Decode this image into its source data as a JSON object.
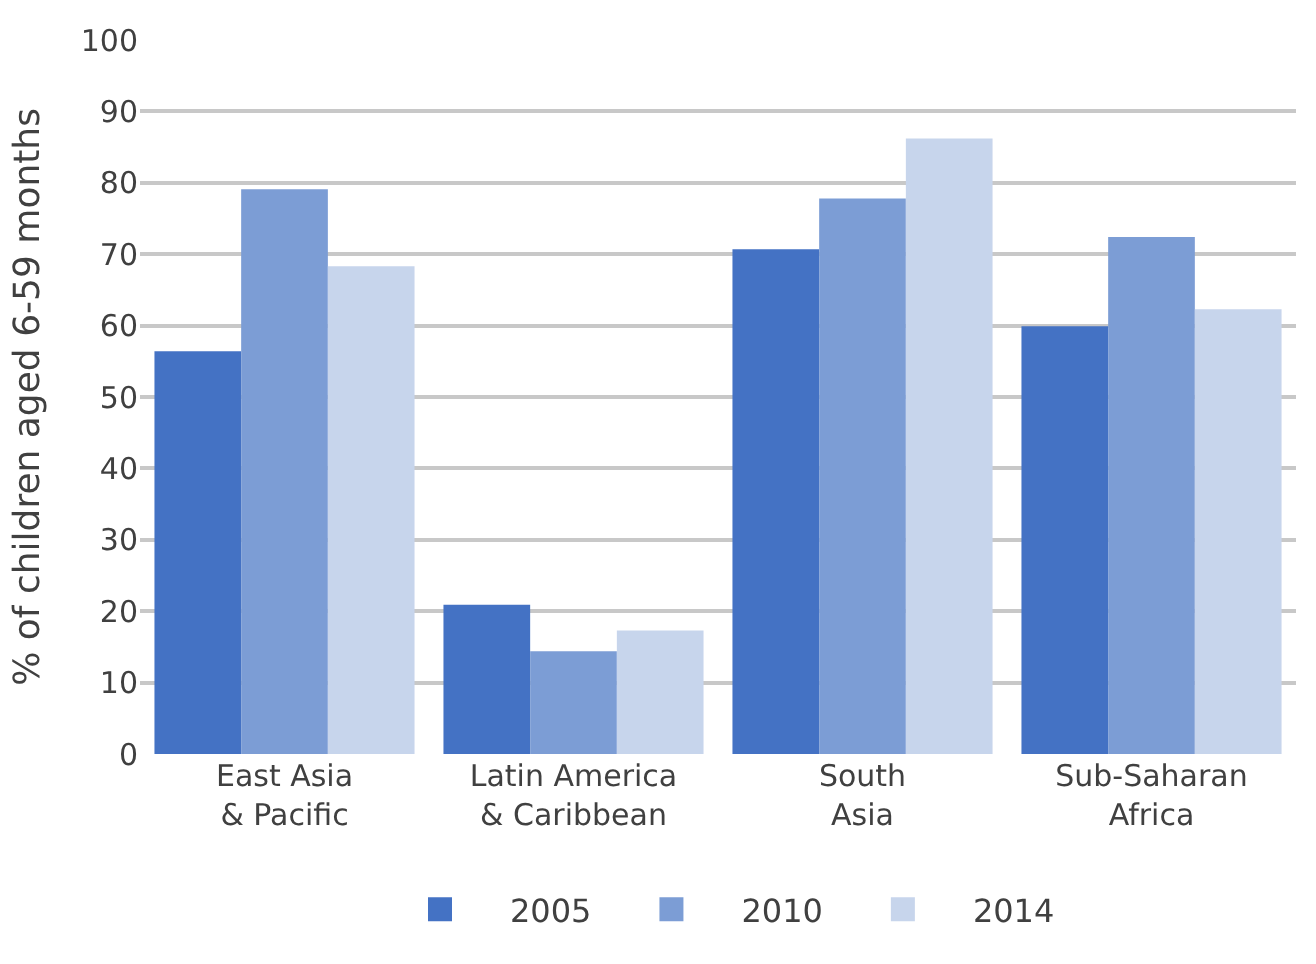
{
  "chart_data": {
    "type": "bar",
    "ylabel": "% of children aged 6-59 months",
    "categories": [
      "East Asia\n& Pacific",
      "Latin America\n& Caribbean",
      "South\nAsia",
      "Sub-Saharan\nAfrica"
    ],
    "series": [
      {
        "name": "2005",
        "color": "#4472c4",
        "values": [
          56.4,
          20.9,
          70.7,
          59.9
        ]
      },
      {
        "name": "2010",
        "color": "#7c9dd5",
        "values": [
          79.1,
          14.4,
          77.8,
          72.4
        ]
      },
      {
        "name": "2014",
        "color": "#c7d5ec",
        "values": [
          68.3,
          17.3,
          86.2,
          62.3
        ]
      }
    ],
    "ylim": [
      0,
      100
    ],
    "yticks": [
      0,
      10,
      20,
      30,
      40,
      50,
      60,
      70,
      80,
      90,
      100
    ],
    "grid": "y",
    "legend": "bottom"
  }
}
